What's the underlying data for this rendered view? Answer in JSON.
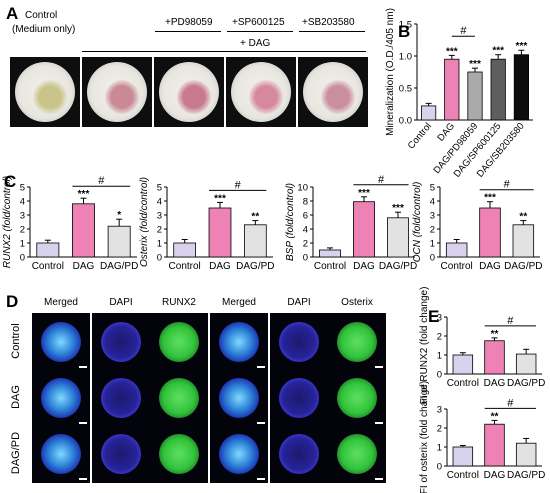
{
  "panel_a": {
    "letter": "A",
    "control_label_1": "Control",
    "control_label_2": "(Medium only)",
    "dag_label": "+ DAG",
    "inhibitors": [
      "+PD98059",
      "+SP600125",
      "+SB203580"
    ],
    "dish_colors": [
      "#c9c48a",
      "#c98a96",
      "#c77a8c",
      "#d6899e",
      "#c98ea0"
    ]
  },
  "panel_d": {
    "letter": "D",
    "columns": [
      "Merged",
      "DAPI",
      "RUNX2",
      "Merged",
      "DAPI",
      "Osterix"
    ],
    "rows": [
      "Control",
      "DAG",
      "DAG/PD"
    ]
  },
  "chart_data": [
    {
      "id": "B",
      "letter": "B",
      "type": "bar",
      "ylabel": "Mineralization (O.D./405 nm)",
      "categories": [
        "Control",
        "DAG",
        "DAG/PD98059",
        "DAG/SP600125",
        "DAG/SB203580"
      ],
      "values": [
        0.22,
        0.95,
        0.75,
        0.95,
        1.02
      ],
      "errors": [
        0.04,
        0.06,
        0.06,
        0.07,
        0.07
      ],
      "colors": [
        "#d9d2ee",
        "#ee82b5",
        "#aaaaaa",
        "#5e5e5e",
        "#0d0d0d"
      ],
      "significance": [
        "",
        "***",
        "***",
        "***",
        "***"
      ],
      "bracket": {
        "from": 1,
        "to": 2,
        "label": "#"
      },
      "ylim": [
        0,
        1.5
      ],
      "yticks": [
        "0.0",
        "0.5",
        "1.0",
        "1.5"
      ]
    },
    {
      "id": "C1",
      "letter": "C",
      "type": "bar",
      "ylabel": "RUNX2 (fold/control)",
      "categories": [
        "Control",
        "DAG",
        "DAG/PD"
      ],
      "values": [
        1.0,
        3.8,
        2.2
      ],
      "errors": [
        0.2,
        0.4,
        0.5
      ],
      "colors": [
        "#d9d2ee",
        "#ee82b5",
        "#e2e2e2"
      ],
      "significance": [
        "",
        "***",
        "*"
      ],
      "bracket": {
        "from": 1,
        "to": 2,
        "label": "#"
      },
      "ylim": [
        0,
        5
      ],
      "yticks": [
        "0",
        "1",
        "2",
        "3",
        "4",
        "5"
      ]
    },
    {
      "id": "C2",
      "type": "bar",
      "ylabel": "Osterix (fold/control)",
      "categories": [
        "Control",
        "DAG",
        "DAG/PD"
      ],
      "values": [
        1.0,
        3.5,
        2.3
      ],
      "errors": [
        0.25,
        0.4,
        0.3
      ],
      "colors": [
        "#d9d2ee",
        "#ee82b5",
        "#e2e2e2"
      ],
      "significance": [
        "",
        "***",
        "**"
      ],
      "bracket": {
        "from": 1,
        "to": 2,
        "label": "#"
      },
      "ylim": [
        0,
        5
      ],
      "yticks": [
        "0",
        "1",
        "2",
        "3",
        "4",
        "5"
      ]
    },
    {
      "id": "C3",
      "type": "bar",
      "ylabel": "BSP (fold/control)",
      "categories": [
        "Control",
        "DAG",
        "DAG/PD"
      ],
      "values": [
        1.0,
        7.9,
        5.6
      ],
      "errors": [
        0.3,
        0.7,
        0.8
      ],
      "colors": [
        "#d9d2ee",
        "#ee82b5",
        "#e2e2e2"
      ],
      "significance": [
        "",
        "***",
        "***"
      ],
      "bracket": {
        "from": 1,
        "to": 2,
        "label": "#"
      },
      "ylim": [
        0,
        10
      ],
      "yticks": [
        "0",
        "2",
        "4",
        "6",
        "8",
        "10"
      ]
    },
    {
      "id": "C4",
      "type": "bar",
      "ylabel": "OCN (fold/control)",
      "categories": [
        "Control",
        "DAG",
        "DAG/PD"
      ],
      "values": [
        1.0,
        3.5,
        2.3
      ],
      "errors": [
        0.25,
        0.45,
        0.3
      ],
      "colors": [
        "#d9d2ee",
        "#ee82b5",
        "#e2e2e2"
      ],
      "significance": [
        "",
        "***",
        "**"
      ],
      "bracket": {
        "from": 1,
        "to": 2,
        "label": "#"
      },
      "ylim": [
        0,
        5
      ],
      "yticks": [
        "0",
        "1",
        "2",
        "3",
        "4",
        "5"
      ]
    },
    {
      "id": "E1",
      "letter": "E",
      "type": "bar",
      "ylabel": "FI of RUNX2 (fold change)",
      "categories": [
        "Control",
        "DAG",
        "DAG/PD"
      ],
      "values": [
        1.0,
        1.75,
        1.05
      ],
      "errors": [
        0.12,
        0.15,
        0.25
      ],
      "colors": [
        "#d9d2ee",
        "#ee82b5",
        "#e2e2e2"
      ],
      "significance": [
        "",
        "**",
        ""
      ],
      "bracket": {
        "from": 1,
        "to": 2,
        "label": "#"
      },
      "ylim": [
        0,
        3
      ],
      "yticks": [
        "0",
        "1",
        "2",
        "3"
      ]
    },
    {
      "id": "E2",
      "type": "bar",
      "ylabel": "FI of osterix (fold change)",
      "categories": [
        "Control",
        "DAG",
        "DAG/PD"
      ],
      "values": [
        1.0,
        2.2,
        1.2
      ],
      "errors": [
        0.08,
        0.2,
        0.25
      ],
      "colors": [
        "#d9d2ee",
        "#ee82b5",
        "#e2e2e2"
      ],
      "significance": [
        "",
        "**",
        ""
      ],
      "bracket": {
        "from": 1,
        "to": 2,
        "label": "#"
      },
      "ylim": [
        0,
        3
      ],
      "yticks": [
        "0",
        "1",
        "2",
        "3"
      ]
    }
  ]
}
